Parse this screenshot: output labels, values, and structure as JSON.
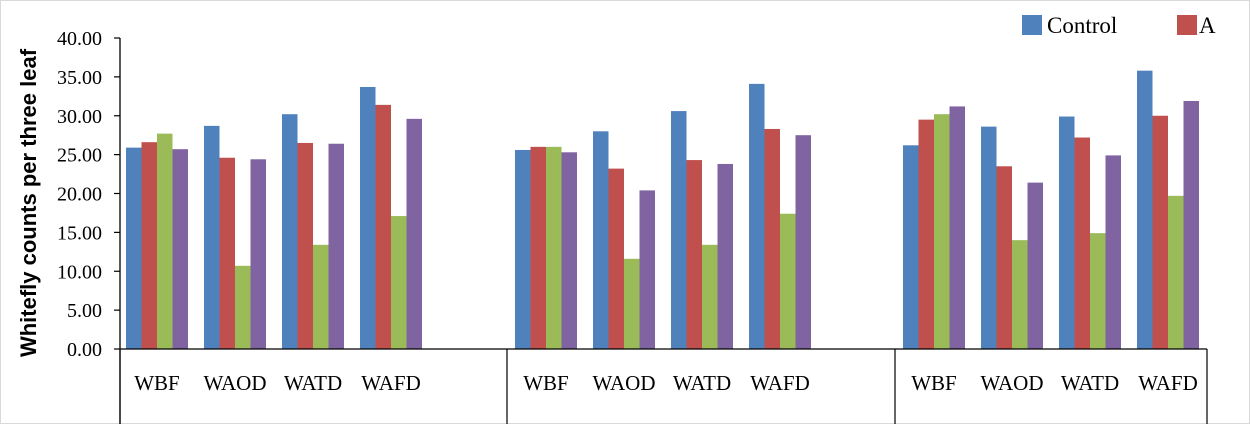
{
  "chart_data": {
    "type": "bar",
    "ylabel": "Whitefly counts per three leaf",
    "ylim": [
      0,
      40
    ],
    "yticks": [
      "0.00",
      "5.00",
      "10.00",
      "15.00",
      "20.00",
      "25.00",
      "30.00",
      "35.00",
      "40.00"
    ],
    "categories": [
      "WBF",
      "WAOD",
      "WATD",
      "WAFD",
      "WBF",
      "WAOD",
      "WATD",
      "WAFD",
      "WBF",
      "WAOD",
      "WATD",
      "WAFD"
    ],
    "series": [
      {
        "name": "Control",
        "color": "#4F81BD",
        "values": [
          25.9,
          28.7,
          30.2,
          33.7,
          25.6,
          28.0,
          30.6,
          34.1,
          26.2,
          28.6,
          29.9,
          35.8
        ]
      },
      {
        "name": "A",
        "color": "#C0504D",
        "values": [
          26.6,
          24.6,
          26.5,
          31.4,
          26.0,
          23.2,
          24.3,
          28.3,
          29.5,
          23.5,
          27.2,
          30.0
        ]
      },
      {
        "color": "#9BBB59",
        "values": [
          27.7,
          10.7,
          13.4,
          17.1,
          26.0,
          11.6,
          13.4,
          17.4,
          30.2,
          14.0,
          14.9,
          19.7
        ]
      },
      {
        "color": "#8064A2",
        "values": [
          25.7,
          24.4,
          26.4,
          29.6,
          25.3,
          20.4,
          23.8,
          27.5,
          31.2,
          21.4,
          24.9,
          31.9
        ]
      }
    ],
    "grid": false,
    "legend_position": "top-right"
  }
}
